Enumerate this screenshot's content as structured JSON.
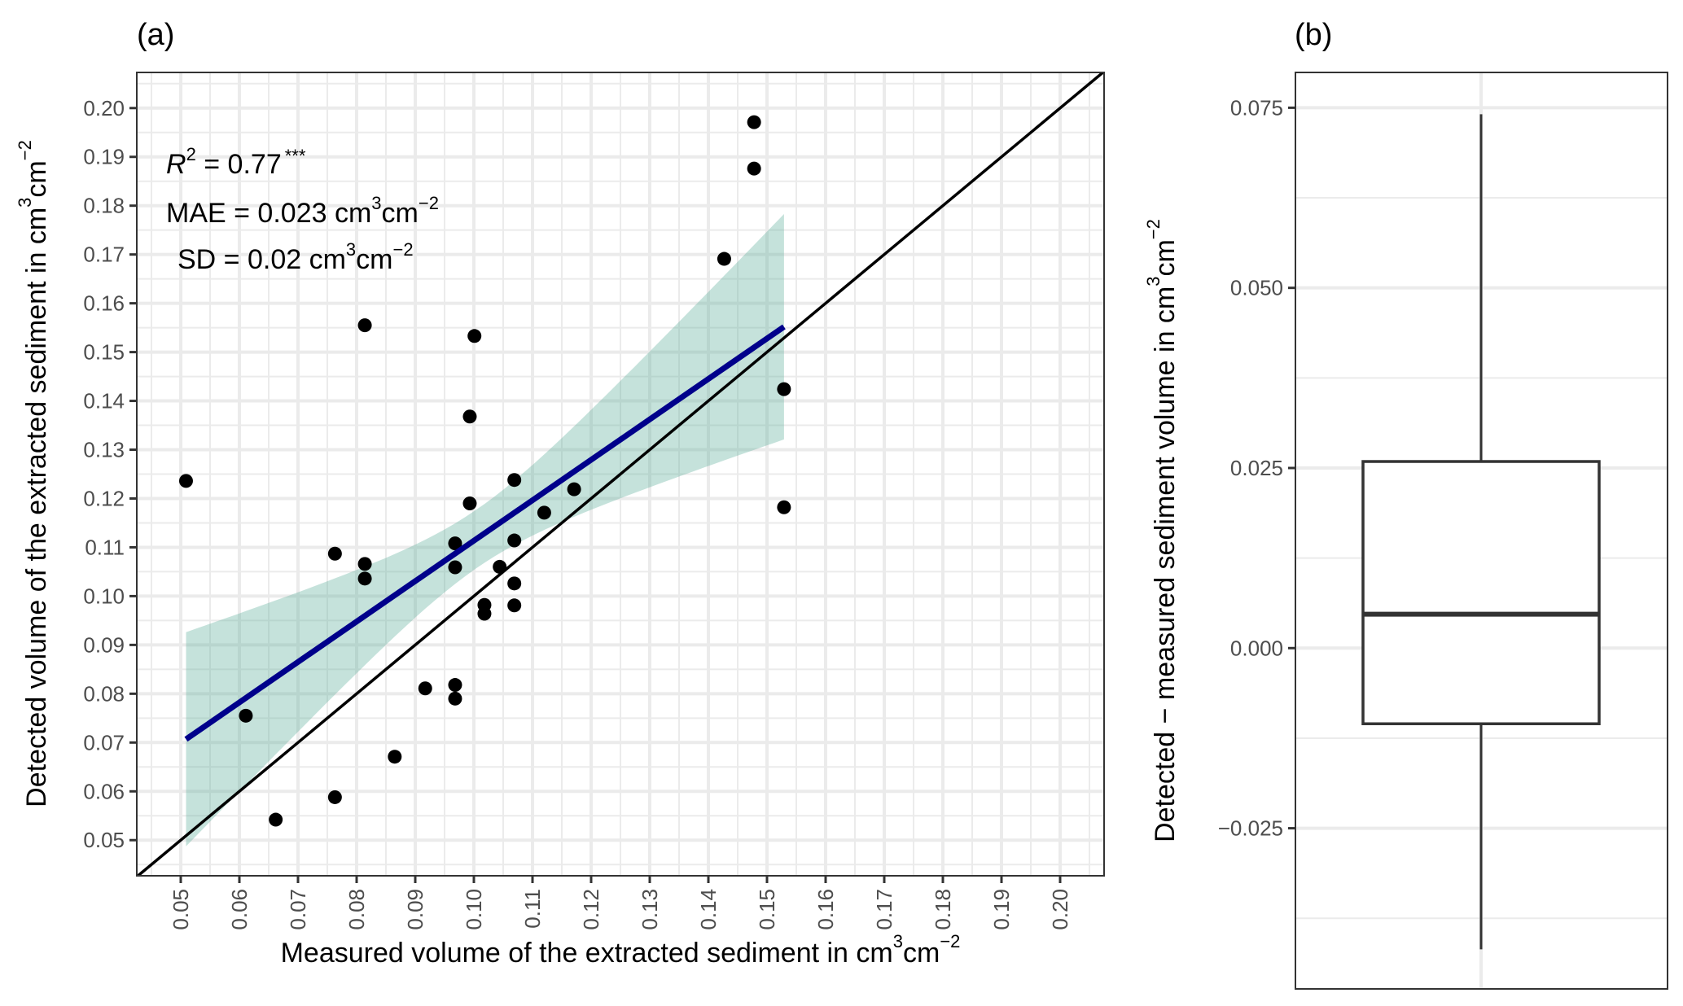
{
  "chart_data": [
    {
      "type": "scatter",
      "panel_label": "(a)",
      "xlabel": "Measured volume of the extracted sediment in  cm",
      "xlabel_unit": {
        "base1": "cm",
        "sup1": "3",
        "base2": "cm",
        "sup2": "−2"
      },
      "ylabel": "Detected volume of the extracted sediment in  cm",
      "ylabel_unit": {
        "base1": "cm",
        "sup1": "3",
        "base2": "cm",
        "sup2": "−2"
      },
      "xlim": [
        0.0425,
        0.2075
      ],
      "ylim": [
        0.0427,
        0.2073
      ],
      "x_ticks": [
        "0.05",
        "0.06",
        "0.07",
        "0.08",
        "0.09",
        "0.10",
        "0.11",
        "0.12",
        "0.13",
        "0.14",
        "0.15",
        "0.16",
        "0.17",
        "0.18",
        "0.19",
        "0.20"
      ],
      "y_ticks": [
        "0.05",
        "0.06",
        "0.07",
        "0.08",
        "0.09",
        "0.10",
        "0.11",
        "0.12",
        "0.13",
        "0.14",
        "0.15",
        "0.16",
        "0.17",
        "0.18",
        "0.19",
        "0.20"
      ],
      "grid": true,
      "annotations": {
        "r2_label": "R",
        "r2_sup": "2",
        "r2_value": " = 0.77",
        "r2_sig": "***",
        "mae_label": "MAE = 0.023 cm",
        "mae_sup1": "3",
        "mae_unit2": "cm",
        "mae_sup2": "−2",
        "sd_label": "SD = 0.02 cm",
        "sd_sup1": "3",
        "sd_unit2": "cm",
        "sd_sup2": "−2"
      },
      "points": [
        {
          "x": 0.0509,
          "y": 0.1236
        },
        {
          "x": 0.0611,
          "y": 0.0755
        },
        {
          "x": 0.0662,
          "y": 0.0542
        },
        {
          "x": 0.0763,
          "y": 0.1087
        },
        {
          "x": 0.0763,
          "y": 0.0588
        },
        {
          "x": 0.0814,
          "y": 0.1555
        },
        {
          "x": 0.0814,
          "y": 0.1066
        },
        {
          "x": 0.0814,
          "y": 0.1036
        },
        {
          "x": 0.0865,
          "y": 0.0671
        },
        {
          "x": 0.0917,
          "y": 0.0811
        },
        {
          "x": 0.0968,
          "y": 0.0818
        },
        {
          "x": 0.0968,
          "y": 0.079
        },
        {
          "x": 0.0968,
          "y": 0.1108
        },
        {
          "x": 0.0968,
          "y": 0.1059
        },
        {
          "x": 0.0993,
          "y": 0.1368
        },
        {
          "x": 0.0993,
          "y": 0.119
        },
        {
          "x": 0.1001,
          "y": 0.1533
        },
        {
          "x": 0.1018,
          "y": 0.0982
        },
        {
          "x": 0.1018,
          "y": 0.0964
        },
        {
          "x": 0.1044,
          "y": 0.106
        },
        {
          "x": 0.1069,
          "y": 0.1238
        },
        {
          "x": 0.1069,
          "y": 0.1114
        },
        {
          "x": 0.1069,
          "y": 0.1026
        },
        {
          "x": 0.1069,
          "y": 0.0981
        },
        {
          "x": 0.112,
          "y": 0.1171
        },
        {
          "x": 0.1171,
          "y": 0.1219
        },
        {
          "x": 0.1427,
          "y": 0.1691
        },
        {
          "x": 0.1478,
          "y": 0.1971
        },
        {
          "x": 0.1478,
          "y": 0.1876
        },
        {
          "x": 0.1529,
          "y": 0.1424
        },
        {
          "x": 0.1529,
          "y": 0.1182
        }
      ],
      "regression": {
        "x_start": 0.0509,
        "x_end": 0.1529,
        "slope": 0.8286,
        "intercept": 0.0285,
        "color": "#00008b"
      },
      "confidence_band": {
        "x_center": 0.1005,
        "half_width_at_center": 0.006,
        "spread_coef": 0.181,
        "color": "#66b2a0",
        "opacity": 0.38
      },
      "identity_line": {
        "label": "1:1 line",
        "color": "#000000"
      },
      "point_color": "#000000"
    },
    {
      "type": "box",
      "panel_label": "(b)",
      "ylabel": "Detected − measured sediment volume in  cm",
      "ylabel_unit": {
        "base1": "cm",
        "sup1": "3",
        "base2": "cm",
        "sup2": "−2"
      },
      "ylim": [
        -0.0473,
        0.0799
      ],
      "y_ticks": [
        {
          "value": 0.075,
          "label": "0.075"
        },
        {
          "value": 0.05,
          "label": "0.050"
        },
        {
          "value": 0.025,
          "label": "0.025"
        },
        {
          "value": 0.0,
          "label": "0.000"
        },
        {
          "value": -0.025,
          "label": "−0.025"
        }
      ],
      "grid": true,
      "box": {
        "whisker_high": 0.0741,
        "q3": 0.0259,
        "median": 0.0047,
        "q1": -0.0105,
        "whisker_low": -0.0418
      },
      "box_color": "#333333"
    }
  ]
}
